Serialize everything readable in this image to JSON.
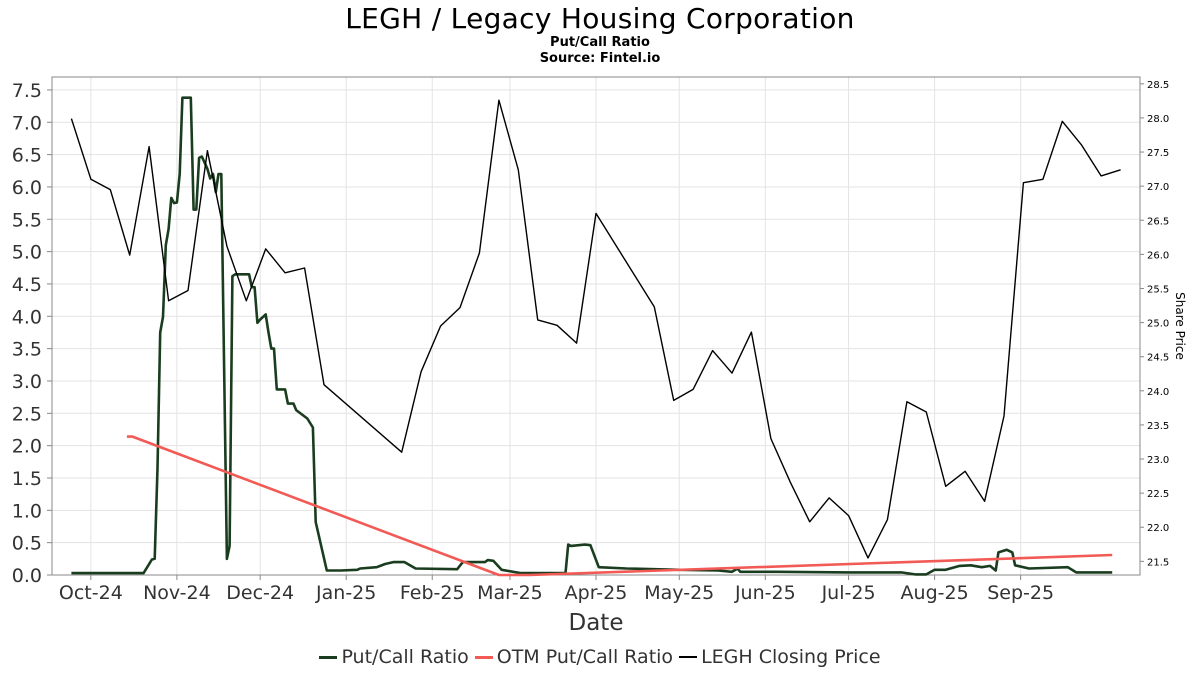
{
  "chart_data": {
    "type": "line",
    "title": "LEGH / Legacy Housing Corporation",
    "subtitle_lines": [
      "Put/Call Ratio",
      "Source: Fintel.io"
    ],
    "xlabel": "Date",
    "ylabel": "",
    "y2label": "Share Price",
    "x_range": [
      "2024-09-17",
      "2025-10-14"
    ],
    "ylim": [
      0,
      7.7
    ],
    "y2lim": [
      21.3,
      28.6
    ],
    "y_ticks": [
      "0.0",
      "0.5",
      "1.0",
      "1.5",
      "2.0",
      "2.5",
      "3.0",
      "3.5",
      "4.0",
      "4.5",
      "5.0",
      "5.5",
      "6.0",
      "6.5",
      "7.0",
      "7.5"
    ],
    "y2_ticks": [
      "21.5",
      "22.0",
      "22.5",
      "23.0",
      "23.5",
      "24.0",
      "24.5",
      "25.0",
      "25.5",
      "26.0",
      "26.5",
      "27.0",
      "27.5",
      "28.0",
      "28.5"
    ],
    "x_ticks": [
      {
        "date": "2024-10-01",
        "label": "Oct-24"
      },
      {
        "date": "2024-11-01",
        "label": "Nov-24"
      },
      {
        "date": "2024-12-01",
        "label": "Dec-24"
      },
      {
        "date": "2025-01-01",
        "label": "Jan-25"
      },
      {
        "date": "2025-02-01",
        "label": "Feb-25"
      },
      {
        "date": "2025-03-01",
        "label": "Mar-25"
      },
      {
        "date": "2025-04-01",
        "label": "Apr-25"
      },
      {
        "date": "2025-05-01",
        "label": "May-25"
      },
      {
        "date": "2025-06-01",
        "label": "Jun-25"
      },
      {
        "date": "2025-07-01",
        "label": "Jul-25"
      },
      {
        "date": "2025-08-01",
        "label": "Aug-25"
      },
      {
        "date": "2025-09-01",
        "label": "Sep-25"
      }
    ],
    "grid": true,
    "legend_position": "bottom-center",
    "series": [
      {
        "name": "Put/Call Ratio",
        "axis": "left",
        "color": "#1a3d1f",
        "points": [
          [
            "2024-09-24",
            0.03
          ],
          [
            "2024-10-01",
            0.03
          ],
          [
            "2024-10-15",
            0.03
          ],
          [
            "2024-10-20",
            0.03
          ],
          [
            "2024-10-23",
            0.24
          ],
          [
            "2024-10-24",
            0.25
          ],
          [
            "2024-10-25",
            1.65
          ],
          [
            "2024-10-26",
            3.75
          ],
          [
            "2024-10-27",
            3.99
          ],
          [
            "2024-10-28",
            5.1
          ],
          [
            "2024-10-29",
            5.35
          ],
          [
            "2024-10-30",
            5.83
          ],
          [
            "2024-10-31",
            5.75
          ],
          [
            "2024-11-01",
            5.76
          ],
          [
            "2024-11-02",
            6.2
          ],
          [
            "2024-11-03",
            7.38
          ],
          [
            "2024-11-06",
            7.38
          ],
          [
            "2024-11-07",
            5.65
          ],
          [
            "2024-11-08",
            5.65
          ],
          [
            "2024-11-09",
            6.45
          ],
          [
            "2024-11-10",
            6.47
          ],
          [
            "2024-11-12",
            6.28
          ],
          [
            "2024-11-13",
            6.13
          ],
          [
            "2024-11-14",
            6.2
          ],
          [
            "2024-11-15",
            5.92
          ],
          [
            "2024-11-16",
            6.2
          ],
          [
            "2024-11-17",
            6.2
          ],
          [
            "2024-11-19",
            0.25
          ],
          [
            "2024-11-20",
            0.45
          ],
          [
            "2024-11-21",
            4.62
          ],
          [
            "2024-11-22",
            4.65
          ],
          [
            "2024-11-24",
            4.65
          ],
          [
            "2024-11-27",
            4.65
          ],
          [
            "2024-11-28",
            4.45
          ],
          [
            "2024-11-29",
            4.45
          ],
          [
            "2024-11-30",
            3.9
          ],
          [
            "2024-12-01",
            3.95
          ],
          [
            "2024-12-03",
            4.03
          ],
          [
            "2024-12-04",
            3.75
          ],
          [
            "2024-12-05",
            3.5
          ],
          [
            "2024-12-06",
            3.5
          ],
          [
            "2024-12-07",
            2.87
          ],
          [
            "2024-12-10",
            2.87
          ],
          [
            "2024-12-11",
            2.65
          ],
          [
            "2024-12-13",
            2.65
          ],
          [
            "2024-12-14",
            2.55
          ],
          [
            "2024-12-18",
            2.42
          ],
          [
            "2024-12-20",
            2.28
          ],
          [
            "2024-12-21",
            0.82
          ],
          [
            "2024-12-25",
            0.07
          ],
          [
            "2024-12-30",
            0.07
          ],
          [
            "2025-01-05",
            0.08
          ],
          [
            "2025-01-06",
            0.1
          ],
          [
            "2025-01-12",
            0.12
          ],
          [
            "2025-01-15",
            0.17
          ],
          [
            "2025-01-18",
            0.2
          ],
          [
            "2025-01-22",
            0.2
          ],
          [
            "2025-01-26",
            0.1
          ],
          [
            "2025-02-10",
            0.09
          ],
          [
            "2025-02-12",
            0.2
          ],
          [
            "2025-02-20",
            0.2
          ],
          [
            "2025-02-21",
            0.23
          ],
          [
            "2025-02-23",
            0.22
          ],
          [
            "2025-02-26",
            0.08
          ],
          [
            "2025-03-05",
            0.03
          ],
          [
            "2025-03-21",
            0.03
          ],
          [
            "2025-03-22",
            0.47
          ],
          [
            "2025-03-23",
            0.45
          ],
          [
            "2025-03-28",
            0.47
          ],
          [
            "2025-03-30",
            0.46
          ],
          [
            "2025-04-02",
            0.12
          ],
          [
            "2025-04-12",
            0.1
          ],
          [
            "2025-05-01",
            0.08
          ],
          [
            "2025-05-15",
            0.07
          ],
          [
            "2025-05-20",
            0.05
          ],
          [
            "2025-05-22",
            0.1
          ],
          [
            "2025-05-23",
            0.05
          ],
          [
            "2025-06-05",
            0.05
          ],
          [
            "2025-07-01",
            0.04
          ],
          [
            "2025-07-20",
            0.04
          ],
          [
            "2025-07-25",
            0.01
          ],
          [
            "2025-07-29",
            0.01
          ],
          [
            "2025-08-01",
            0.08
          ],
          [
            "2025-08-05",
            0.08
          ],
          [
            "2025-08-10",
            0.14
          ],
          [
            "2025-08-14",
            0.15
          ],
          [
            "2025-08-18",
            0.12
          ],
          [
            "2025-08-21",
            0.14
          ],
          [
            "2025-08-23",
            0.07
          ],
          [
            "2025-08-24",
            0.35
          ],
          [
            "2025-08-27",
            0.39
          ],
          [
            "2025-08-29",
            0.35
          ],
          [
            "2025-08-30",
            0.15
          ],
          [
            "2025-09-04",
            0.1
          ],
          [
            "2025-09-18",
            0.12
          ],
          [
            "2025-09-21",
            0.04
          ],
          [
            "2025-10-04",
            0.04
          ]
        ]
      },
      {
        "name": "OTM Put/Call Ratio",
        "axis": "left",
        "color": "#f25a55",
        "points": [
          [
            "2024-10-14",
            2.14
          ],
          [
            "2024-10-16",
            2.14
          ],
          [
            "2025-02-25",
            0.0
          ],
          [
            "2025-03-08",
            0.0
          ],
          [
            "2025-10-04",
            0.31
          ]
        ]
      },
      {
        "name": "LEGH Closing Price",
        "axis": "right",
        "color": "#000000",
        "points": [
          [
            "2024-09-24",
            27.99
          ],
          [
            "2024-10-01",
            27.1
          ],
          [
            "2024-10-08",
            26.95
          ],
          [
            "2024-10-15",
            25.99
          ],
          [
            "2024-10-22",
            27.58
          ],
          [
            "2024-10-29",
            25.32
          ],
          [
            "2024-11-05",
            25.47
          ],
          [
            "2024-11-12",
            27.52
          ],
          [
            "2024-11-19",
            26.12
          ],
          [
            "2024-11-26",
            25.32
          ],
          [
            "2024-12-03",
            26.08
          ],
          [
            "2024-12-10",
            25.73
          ],
          [
            "2024-12-17",
            25.8
          ],
          [
            "2024-12-24",
            24.09
          ],
          [
            "2025-01-21",
            23.1
          ],
          [
            "2025-01-28",
            24.28
          ],
          [
            "2025-02-04",
            24.95
          ],
          [
            "2025-02-11",
            25.22
          ],
          [
            "2025-02-18",
            26.02
          ],
          [
            "2025-02-25",
            28.26
          ],
          [
            "2025-03-04",
            27.24
          ],
          [
            "2025-03-11",
            25.04
          ],
          [
            "2025-03-18",
            24.96
          ],
          [
            "2025-03-25",
            24.7
          ],
          [
            "2025-04-01",
            26.6
          ],
          [
            "2025-04-22",
            25.23
          ],
          [
            "2025-04-29",
            23.86
          ],
          [
            "2025-05-06",
            24.02
          ],
          [
            "2025-05-13",
            24.59
          ],
          [
            "2025-05-20",
            24.26
          ],
          [
            "2025-05-27",
            24.86
          ],
          [
            "2025-06-03",
            23.3
          ],
          [
            "2025-06-10",
            22.66
          ],
          [
            "2025-06-17",
            22.08
          ],
          [
            "2025-06-24",
            22.43
          ],
          [
            "2025-07-01",
            22.17
          ],
          [
            "2025-07-08",
            21.55
          ],
          [
            "2025-07-15",
            22.11
          ],
          [
            "2025-07-22",
            23.84
          ],
          [
            "2025-07-29",
            23.69
          ],
          [
            "2025-08-05",
            22.6
          ],
          [
            "2025-08-12",
            22.82
          ],
          [
            "2025-08-19",
            22.38
          ],
          [
            "2025-08-26",
            23.63
          ],
          [
            "2025-09-02",
            27.05
          ],
          [
            "2025-09-09",
            27.1
          ],
          [
            "2025-09-16",
            27.95
          ],
          [
            "2025-09-23",
            27.6
          ],
          [
            "2025-09-30",
            27.15
          ],
          [
            "2025-10-07",
            27.24
          ]
        ]
      }
    ]
  }
}
